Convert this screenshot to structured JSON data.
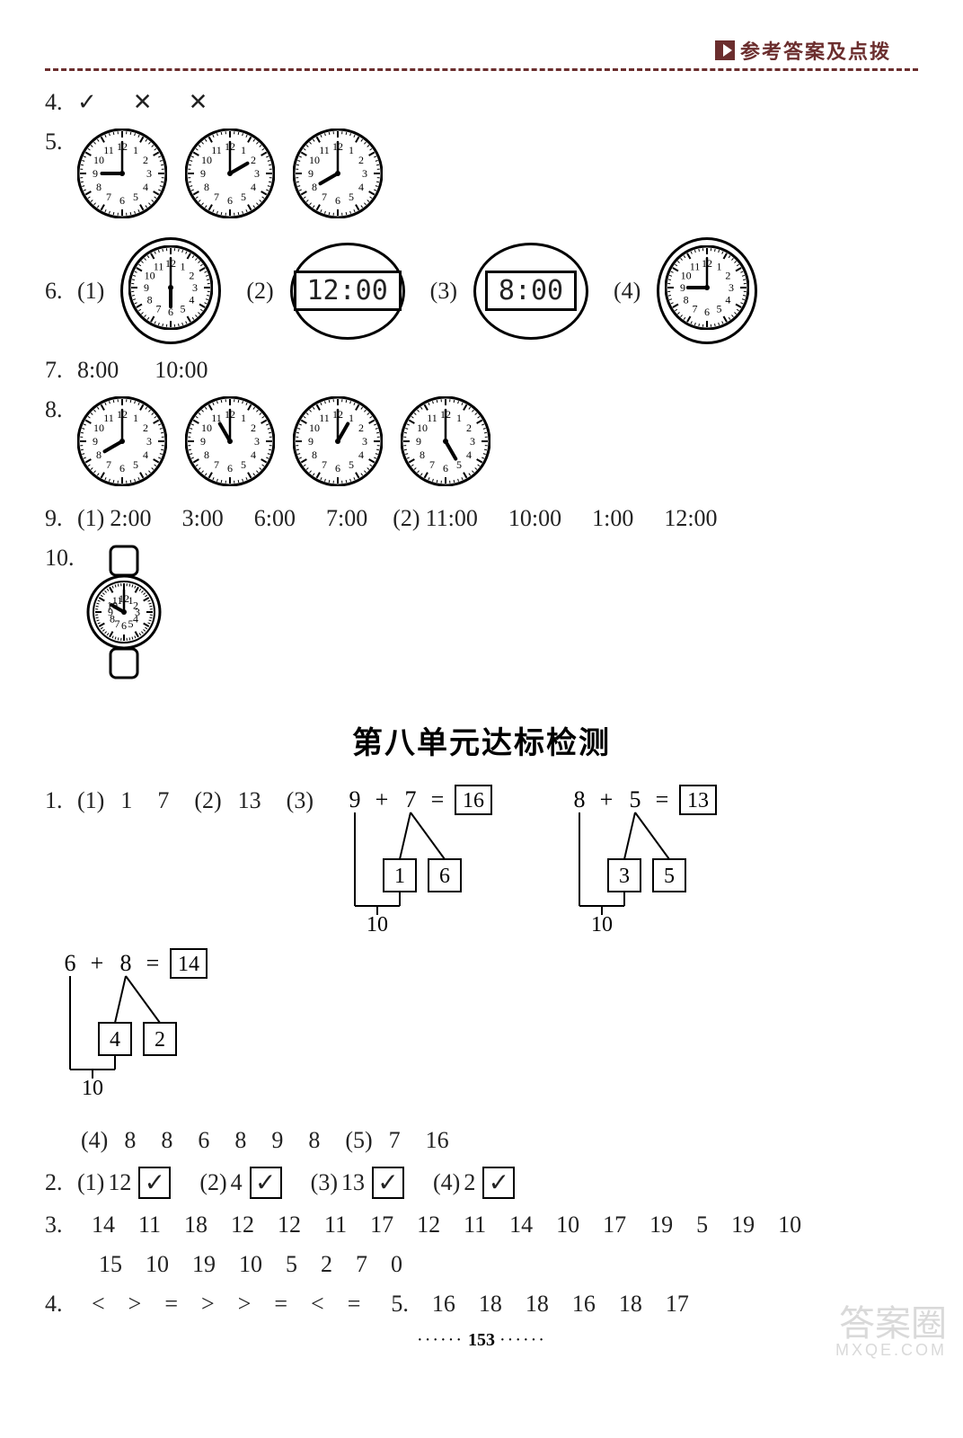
{
  "header": {
    "title": "参考答案及点拨"
  },
  "q4": {
    "num": "4.",
    "marks": [
      "✓",
      "✕",
      "✕"
    ]
  },
  "q5": {
    "num": "5.",
    "clocks": [
      {
        "hour": 9,
        "minute": 0,
        "size": 100,
        "border": 3
      },
      {
        "hour": 2,
        "minute": 0,
        "size": 100,
        "border": 3
      },
      {
        "hour": 8,
        "minute": 0,
        "size": 100,
        "border": 3
      }
    ]
  },
  "q6": {
    "num": "6.",
    "items": [
      {
        "label": "(1)",
        "type": "clock",
        "hour": 6,
        "minute": 0,
        "ring": true
      },
      {
        "label": "(2)",
        "type": "digital",
        "text": "12:00",
        "ring": true
      },
      {
        "label": "(3)",
        "type": "digital",
        "text": "8:00",
        "ring": true
      },
      {
        "label": "(4)",
        "type": "clock",
        "hour": 9,
        "minute": 0,
        "ring": true
      }
    ]
  },
  "q7": {
    "num": "7.",
    "values": [
      "8:00",
      "10:00"
    ]
  },
  "q8": {
    "num": "8.",
    "clocks": [
      {
        "hour": 8,
        "minute": 0,
        "size": 100,
        "border": 3
      },
      {
        "hour": 11,
        "minute": 0,
        "size": 100,
        "border": 3
      },
      {
        "hour": 1,
        "minute": 0,
        "size": 100,
        "border": 3
      },
      {
        "hour": 5,
        "minute": 0,
        "size": 100,
        "border": 3
      }
    ]
  },
  "q9": {
    "num": "9.",
    "parts": [
      {
        "label": "(1)",
        "values": [
          "2:00",
          "3:00",
          "6:00",
          "7:00"
        ]
      },
      {
        "label": "(2)",
        "values": [
          "11:00",
          "10:00",
          "1:00",
          "12:00"
        ]
      }
    ]
  },
  "q10": {
    "num": "10.",
    "watch": {
      "hour": 10,
      "minute": 0
    }
  },
  "section_title": "第八单元达标检测",
  "s1": {
    "num": "1.",
    "sub1": {
      "label": "(1)",
      "values": [
        "1",
        "7"
      ]
    },
    "sub2": {
      "label": "(2)",
      "value": "13"
    },
    "sub3": {
      "label": "(3)",
      "eqs": [
        {
          "a": "9",
          "op": "+",
          "b": "7",
          "eq": "=",
          "res": "16",
          "split_a": "1",
          "split_b": "6",
          "below": "10"
        },
        {
          "a": "8",
          "op": "+",
          "b": "5",
          "eq": "=",
          "res": "13",
          "split_a": "3",
          "split_b": "5",
          "below": "10"
        },
        {
          "a": "6",
          "op": "+",
          "b": "8",
          "eq": "=",
          "res": "14",
          "split_a": "4",
          "split_b": "2",
          "below": "10"
        }
      ]
    },
    "sub4": {
      "label": "(4)",
      "values": [
        "8",
        "8",
        "6",
        "8",
        "9",
        "8"
      ]
    },
    "sub5": {
      "label": "(5)",
      "values": [
        "7",
        "16"
      ]
    }
  },
  "s2": {
    "num": "2.",
    "items": [
      {
        "label": "(1)",
        "value": "12",
        "checked": true
      },
      {
        "label": "(2)",
        "value": "4",
        "checked": true
      },
      {
        "label": "(3)",
        "value": "13",
        "checked": true
      },
      {
        "label": "(4)",
        "value": "2",
        "checked": true
      }
    ]
  },
  "s3": {
    "num": "3.",
    "line1": [
      "14",
      "11",
      "18",
      "12",
      "12",
      "11",
      "17",
      "12",
      "11",
      "14",
      "10",
      "17",
      "19",
      "5",
      "19",
      "10"
    ],
    "line2": [
      "15",
      "10",
      "19",
      "10",
      "5",
      "2",
      "7",
      "0"
    ]
  },
  "s4": {
    "num": "4.",
    "ops": [
      "<",
      ">",
      "=",
      ">",
      ">",
      "=",
      "<",
      "="
    ]
  },
  "s5": {
    "num": "5.",
    "values": [
      "16",
      "18",
      "18",
      "16",
      "18",
      "17"
    ]
  },
  "page_number": "153",
  "watermark": {
    "big": "答案圈",
    "small": "MXQE.COM"
  },
  "style": {
    "clock_face": "#ffffff",
    "clock_border": "#000000",
    "hand_color": "#000000"
  }
}
